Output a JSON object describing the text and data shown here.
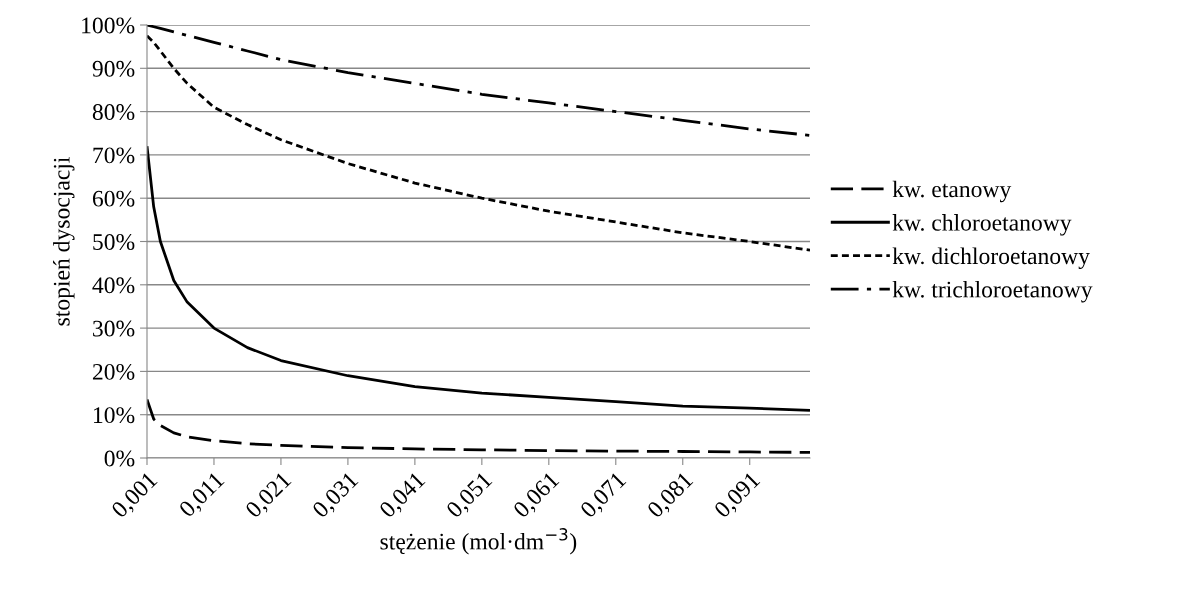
{
  "chart_data": {
    "type": "line",
    "xlabel": "stężenie (mol·dm$^{−3}$)",
    "ylabel": "stopień dysocjacji",
    "x": [
      0.001,
      0.002,
      0.003,
      0.005,
      0.007,
      0.011,
      0.016,
      0.021,
      0.031,
      0.041,
      0.051,
      0.061,
      0.071,
      0.081,
      0.091,
      0.1
    ],
    "series": [
      {
        "name": "kw. etanowy",
        "color": "#000000",
        "line_style": "dashed",
        "values": [
          13.5,
          9,
          7.5,
          5.8,
          4.9,
          4,
          3.3,
          2.9,
          2.4,
          2.1,
          1.9,
          1.7,
          1.6,
          1.5,
          1.4,
          1.3
        ]
      },
      {
        "name": "kw. chloroetanowy",
        "color": "#000000",
        "line_style": "solid",
        "values": [
          72,
          58,
          50,
          41,
          36,
          30,
          25.5,
          22.5,
          19,
          16.5,
          15,
          14,
          13,
          12,
          11.5,
          11
        ]
      },
      {
        "name": "kw. dichloroetanowy",
        "color": "#000000",
        "line_style": "dotted",
        "values": [
          97.5,
          96,
          94,
          90,
          86.5,
          81,
          77,
          73.5,
          68,
          63.5,
          60,
          57,
          54.5,
          52,
          50,
          48
        ]
      },
      {
        "name": "kw. trichloroetanowy",
        "color": "#000000",
        "line_style": "dashdot",
        "values": [
          100,
          99.6,
          99.2,
          98.4,
          97.6,
          96,
          94,
          92,
          89,
          86.5,
          84,
          82,
          80,
          78,
          76,
          74.5
        ]
      }
    ],
    "xlim": [
      0.001,
      0.1
    ],
    "xticks": [
      {
        "value": 0.001,
        "label": "0,001"
      },
      {
        "value": 0.011,
        "label": "0,011"
      },
      {
        "value": 0.021,
        "label": "0,021"
      },
      {
        "value": 0.031,
        "label": "0,031"
      },
      {
        "value": 0.041,
        "label": "0,041"
      },
      {
        "value": 0.051,
        "label": "0,051"
      },
      {
        "value": 0.061,
        "label": "0,061"
      },
      {
        "value": 0.071,
        "label": "0,071"
      },
      {
        "value": 0.081,
        "label": "0,081"
      },
      {
        "value": 0.091,
        "label": "0,091"
      }
    ],
    "ylim": [
      0,
      100
    ],
    "yticks": [
      {
        "value": 0,
        "label": "0%"
      },
      {
        "value": 10,
        "label": "10%"
      },
      {
        "value": 20,
        "label": "20%"
      },
      {
        "value": 30,
        "label": "30%"
      },
      {
        "value": 40,
        "label": "40%"
      },
      {
        "value": 50,
        "label": "50%"
      },
      {
        "value": 60,
        "label": "60%"
      },
      {
        "value": 70,
        "label": "70%"
      },
      {
        "value": 80,
        "label": "80%"
      },
      {
        "value": 90,
        "label": "90%"
      },
      {
        "value": 100,
        "label": "100%"
      }
    ],
    "grid": "y",
    "legend": "right",
    "marker": "none"
  }
}
